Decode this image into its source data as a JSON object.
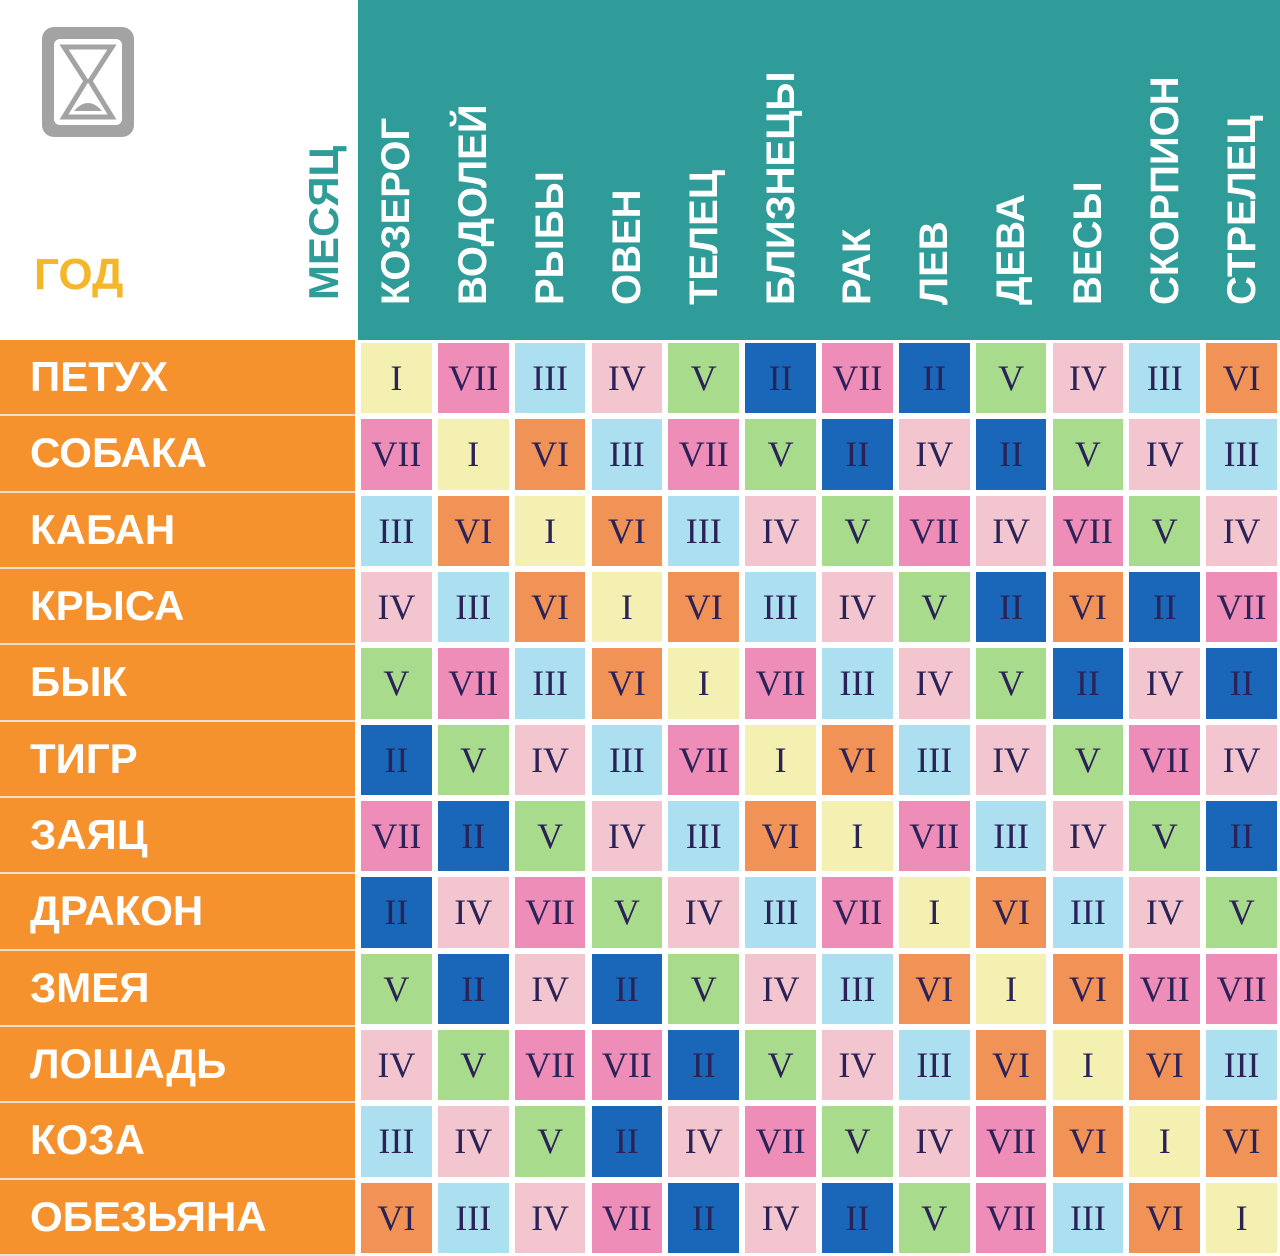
{
  "header": {
    "year_label": "ГОД",
    "month_label": "МЕСЯЦ"
  },
  "columns": [
    "КОЗЕРОГ",
    "ВОДОЛЕЙ",
    "РЫБЫ",
    "ОВЕН",
    "ТЕЛЕЦ",
    "БЛИЗНЕЦЫ",
    "РАК",
    "ЛЕВ",
    "ДЕВА",
    "ВЕСЫ",
    "СКОРПИОН",
    "СТРЕЛЕЦ"
  ],
  "rows": [
    {
      "label": "ПЕТУХ",
      "values": [
        "I",
        "VII",
        "III",
        "IV",
        "V",
        "II",
        "VII",
        "II",
        "V",
        "IV",
        "III",
        "VI"
      ]
    },
    {
      "label": "СОБАКА",
      "values": [
        "VII",
        "I",
        "VI",
        "III",
        "VII",
        "V",
        "II",
        "IV",
        "II",
        "V",
        "IV",
        "III"
      ]
    },
    {
      "label": "КАБАН",
      "values": [
        "III",
        "VI",
        "I",
        "VI",
        "III",
        "IV",
        "V",
        "VII",
        "IV",
        "VII",
        "V",
        "IV"
      ]
    },
    {
      "label": "КРЫСА",
      "values": [
        "IV",
        "III",
        "VI",
        "I",
        "VI",
        "III",
        "IV",
        "V",
        "II",
        "VI",
        "II",
        "VII"
      ]
    },
    {
      "label": "БЫК",
      "values": [
        "V",
        "VII",
        "III",
        "VI",
        "I",
        "VII",
        "III",
        "IV",
        "V",
        "II",
        "IV",
        "II"
      ]
    },
    {
      "label": "ТИГР",
      "values": [
        "II",
        "V",
        "IV",
        "III",
        "VII",
        "I",
        "VI",
        "III",
        "IV",
        "V",
        "VII",
        "IV"
      ]
    },
    {
      "label": "ЗАЯЦ",
      "values": [
        "VII",
        "II",
        "V",
        "IV",
        "III",
        "VI",
        "I",
        "VII",
        "III",
        "IV",
        "V",
        "II"
      ]
    },
    {
      "label": "ДРАКОН",
      "values": [
        "II",
        "IV",
        "VII",
        "V",
        "IV",
        "III",
        "VII",
        "I",
        "VI",
        "III",
        "IV",
        "V"
      ]
    },
    {
      "label": "ЗМЕЯ",
      "values": [
        "V",
        "II",
        "IV",
        "II",
        "V",
        "IV",
        "III",
        "VI",
        "I",
        "VI",
        "VII",
        "VII"
      ]
    },
    {
      "label": "ЛОШАДЬ",
      "values": [
        "IV",
        "V",
        "VII",
        "VII",
        "II",
        "V",
        "IV",
        "III",
        "VI",
        "I",
        "VI",
        "III"
      ]
    },
    {
      "label": "КОЗА",
      "values": [
        "III",
        "IV",
        "V",
        "II",
        "IV",
        "VII",
        "V",
        "IV",
        "VII",
        "VI",
        "I",
        "VI"
      ]
    },
    {
      "label": "ОБЕЗЬЯНА",
      "values": [
        "VI",
        "III",
        "IV",
        "VII",
        "II",
        "IV",
        "II",
        "V",
        "VII",
        "III",
        "VI",
        "I"
      ]
    }
  ],
  "palette": {
    "I": "#f3f0b2",
    "II": "#1a66b8",
    "III": "#acdff0",
    "IV": "#f3c6cf",
    "V": "#a9db8c",
    "VI": "#f19257",
    "VII": "#ef8db9"
  }
}
